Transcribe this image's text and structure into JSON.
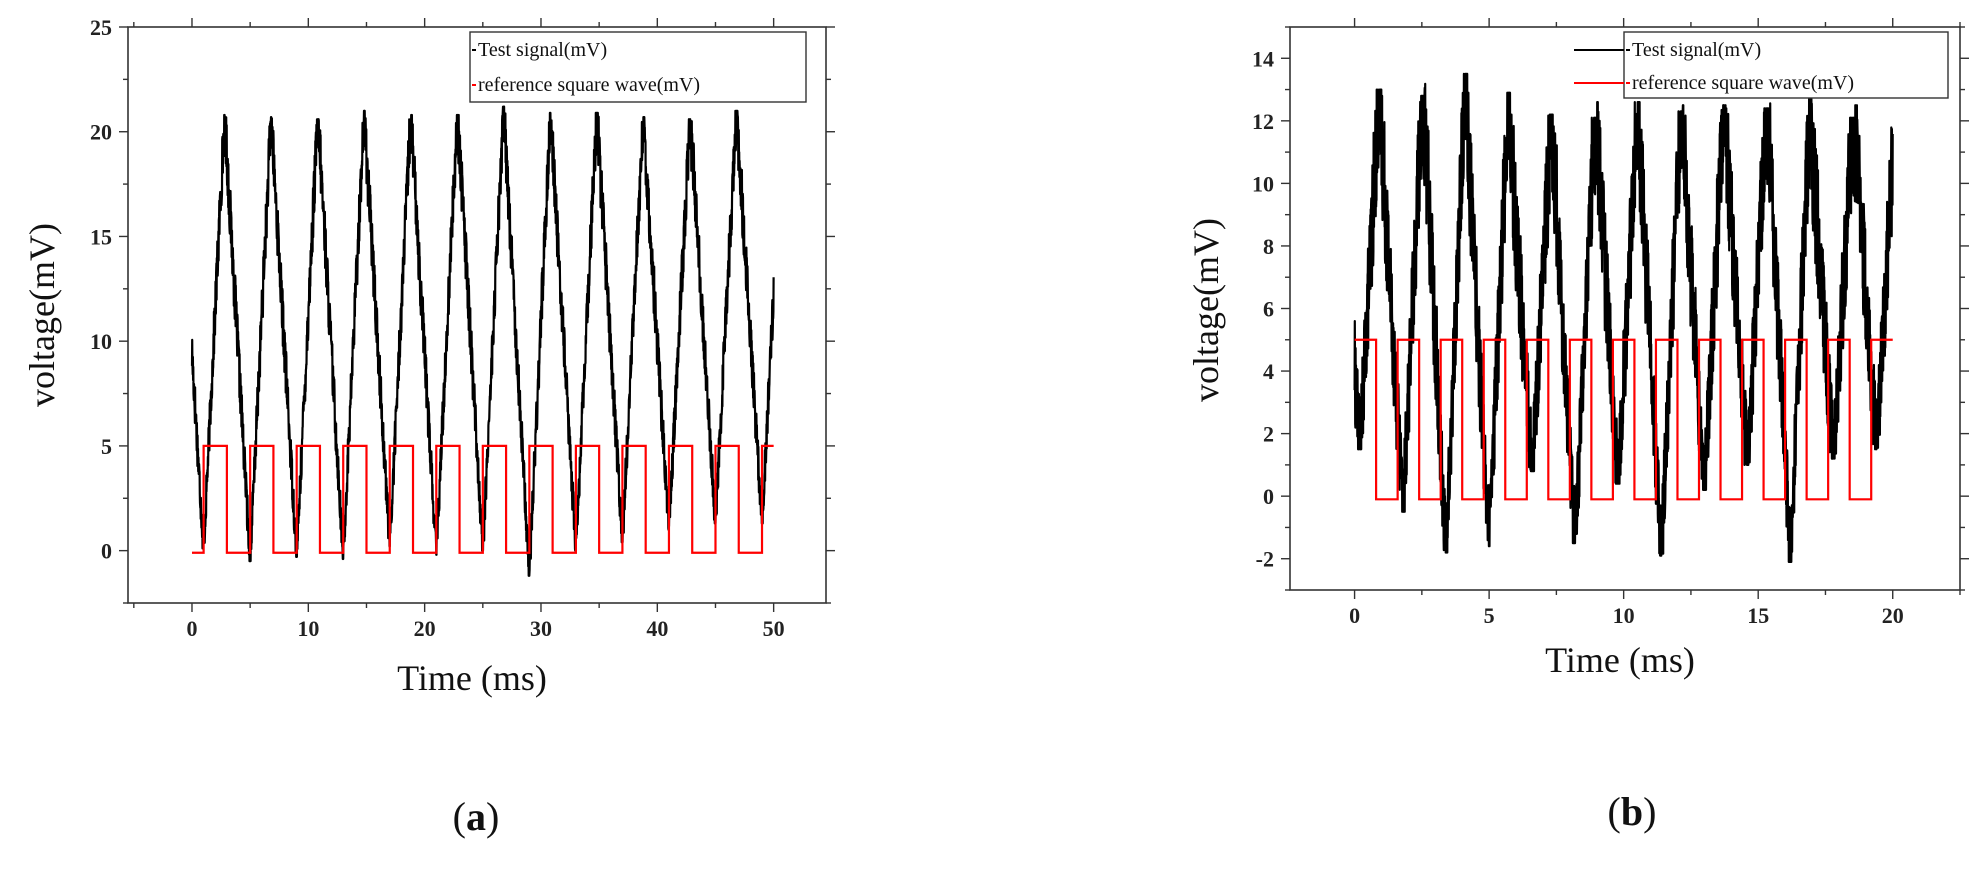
{
  "chart_data": [
    {
      "type": "line",
      "panel_label": "(a)",
      "panel_letter": "a",
      "xlabel": "Time (ms)",
      "ylabel": "voltage(mV)",
      "xlim": [
        -5.5,
        54.5
      ],
      "ylim": [
        -2.5,
        25
      ],
      "xticks": [
        0,
        10,
        20,
        30,
        40,
        50
      ],
      "yticks": [
        0,
        5,
        10,
        15,
        20,
        25
      ],
      "legend_position": "top-right",
      "series": [
        {
          "name": "Test signal(mV)",
          "color": "#000000",
          "period_ms": 4.0,
          "phase_ms": 1.0,
          "x_range": [
            0,
            50
          ],
          "peak_values": [
            20.8,
            20.7,
            20.6,
            21.0,
            20.8,
            20.8,
            21.2,
            20.9,
            20.9,
            20.7,
            20.6,
            21.0
          ],
          "trough_values": [
            0.0,
            -0.5,
            -0.3,
            -0.4,
            0.2,
            -0.2,
            0.0,
            -1.2,
            0.0,
            0.4,
            1.0,
            1.3
          ],
          "noise_mV": 1.4
        },
        {
          "name": "reference square wave(mV)",
          "color": "#ff0000",
          "high": 5.0,
          "low": -0.1,
          "period_ms": 4.0,
          "first_rise_ms": 1.0,
          "x_range": [
            0,
            50
          ]
        }
      ]
    },
    {
      "type": "line",
      "panel_label": "(b)",
      "panel_letter": "b",
      "xlabel": "Time (ms)",
      "ylabel": "voltage(mV)",
      "xlim": [
        -2.4,
        22.5
      ],
      "ylim": [
        -3,
        15
      ],
      "xticks": [
        0,
        5,
        10,
        15,
        20
      ],
      "yticks": [
        -2,
        0,
        2,
        4,
        6,
        8,
        10,
        12,
        14
      ],
      "legend_position": "top-right",
      "series": [
        {
          "name": "Test signal(mV)",
          "color": "#000000",
          "period_ms": 1.6,
          "phase_ms": 0.2,
          "x_range": [
            0,
            20
          ],
          "peak_values": [
            13.0,
            12.8,
            13.5,
            12.9,
            12.2,
            12.1,
            12.6,
            12.3,
            12.5,
            12.4,
            12.7,
            12.1,
            12.5
          ],
          "trough_values": [
            1.5,
            -0.5,
            -1.8,
            -1.6,
            0.8,
            -1.5,
            0.4,
            -1.9,
            0.2,
            1.0,
            -2.1,
            1.2,
            1.5
          ],
          "noise_mV": 2.2
        },
        {
          "name": "reference square wave(mV)",
          "color": "#ff0000",
          "high": 5.0,
          "low": -0.1,
          "period_ms": 1.6,
          "first_fall_ms": 0.8,
          "x_range": [
            0,
            20
          ]
        }
      ]
    }
  ]
}
